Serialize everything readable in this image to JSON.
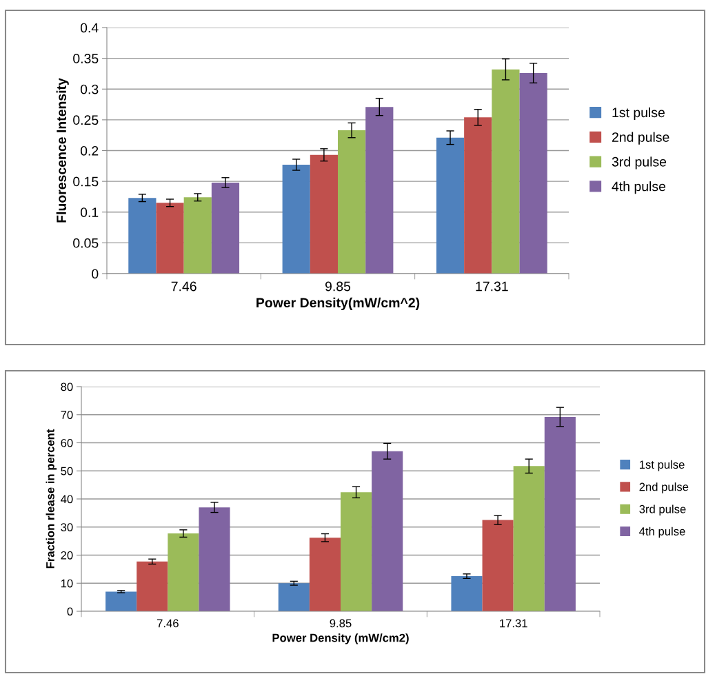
{
  "chart_data": [
    {
      "type": "bar",
      "xlabel": "Power Density(mW/cm^2)",
      "ylabel": "Fluorescence Intensity",
      "categories": [
        "7.46",
        "9.85",
        "17.31"
      ],
      "ylim": [
        0,
        0.4
      ],
      "yticks": [
        0,
        0.05,
        0.1,
        0.15,
        0.2,
        0.25,
        0.3,
        0.35,
        0.4
      ],
      "grid": "y",
      "legend": "right",
      "series": [
        {
          "name": "1st pulse",
          "color": "#4f81bd",
          "values": [
            0.123,
            0.177,
            0.221
          ],
          "errors": [
            0.006,
            0.009,
            0.011
          ]
        },
        {
          "name": "2nd pulse",
          "color": "#c0504d",
          "values": [
            0.115,
            0.193,
            0.254
          ],
          "errors": [
            0.006,
            0.01,
            0.013
          ]
        },
        {
          "name": "3rd pulse",
          "color": "#9bbb59",
          "values": [
            0.124,
            0.233,
            0.332
          ],
          "errors": [
            0.006,
            0.012,
            0.017
          ]
        },
        {
          "name": "4th pulse",
          "color": "#8064a2",
          "values": [
            0.148,
            0.271,
            0.326
          ],
          "errors": [
            0.008,
            0.014,
            0.016
          ]
        }
      ]
    },
    {
      "type": "bar",
      "xlabel": "Power Density (mW/cm2)",
      "ylabel": "Fraction rlease in percent",
      "categories": [
        "7.46",
        "9.85",
        "17.31"
      ],
      "ylim": [
        0,
        80
      ],
      "yticks": [
        0,
        10,
        20,
        30,
        40,
        50,
        60,
        70,
        80
      ],
      "grid": "y",
      "legend": "right",
      "series": [
        {
          "name": "1st pulse",
          "color": "#4f81bd",
          "values": [
            7.0,
            10.0,
            12.5
          ],
          "errors": [
            0.4,
            0.7,
            0.8
          ]
        },
        {
          "name": "2nd pulse",
          "color": "#c0504d",
          "values": [
            17.7,
            26.2,
            32.5
          ],
          "errors": [
            0.9,
            1.4,
            1.6
          ]
        },
        {
          "name": "3rd pulse",
          "color": "#9bbb59",
          "values": [
            27.7,
            42.4,
            51.7
          ],
          "errors": [
            1.3,
            2.0,
            2.5
          ]
        },
        {
          "name": "4th pulse",
          "color": "#8064a2",
          "values": [
            37.0,
            57.0,
            69.2
          ],
          "errors": [
            1.8,
            2.8,
            3.4
          ]
        }
      ]
    }
  ]
}
